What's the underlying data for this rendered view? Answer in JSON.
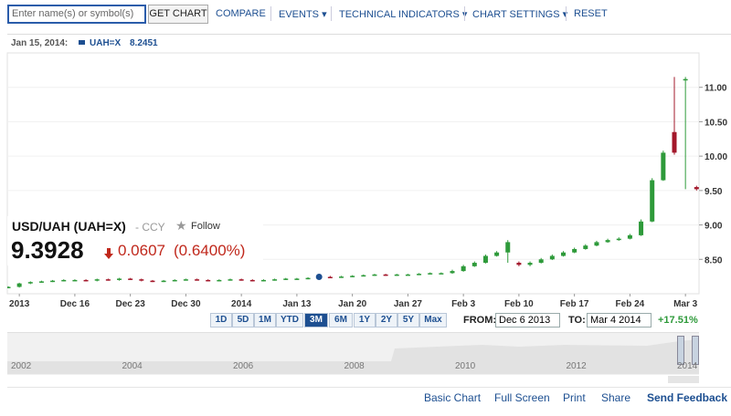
{
  "toolbar": {
    "search_placeholder": "Enter name(s) or symbol(s)",
    "button": "GET CHART",
    "links": [
      "COMPARE",
      "EVENTS ▾",
      "TECHNICAL INDICATORS ▾",
      "CHART SETTINGS ▾",
      "RESET"
    ]
  },
  "info": {
    "date": "Jan 15, 2014:",
    "symbol": "UAH=X"
  },
  "quote": {
    "name": "USD/UAH (UAH=X)",
    "type": "- CCY",
    "follow": "Follow",
    "price": "9.3928",
    "change": "0.0607",
    "change_percent": "(0.6400%)"
  },
  "chart_data": {
    "type": "candlestick",
    "categories": [
      null,
      "2013",
      null,
      null,
      null,
      null,
      "Dec 16",
      null,
      null,
      null,
      null,
      "Dec 23",
      null,
      null,
      null,
      null,
      "Dec 30",
      null,
      null,
      null,
      null,
      "2014",
      null,
      null,
      null,
      null,
      "Jan 13",
      null,
      null,
      null,
      null,
      "Jan 20",
      null,
      null,
      null,
      null,
      "Jan 27",
      null,
      null,
      null,
      null,
      "Feb 3",
      null,
      null,
      null,
      null,
      "Feb 10",
      null,
      null,
      null,
      null,
      "Feb 17",
      null,
      null,
      null,
      null,
      "Feb 24",
      null,
      null,
      null,
      null,
      "Mar 3",
      null
    ],
    "open": [
      8.09,
      8.1,
      8.15,
      8.17,
      8.18,
      8.19,
      8.2,
      8.2,
      8.19,
      8.21,
      8.2,
      8.22,
      8.21,
      8.19,
      8.18,
      8.19,
      8.2,
      8.21,
      8.2,
      8.19,
      8.2,
      8.21,
      8.2,
      8.19,
      8.2,
      8.21,
      8.22,
      8.22,
      8.23,
      8.2451,
      8.24,
      8.25,
      8.26,
      8.27,
      8.28,
      8.27,
      8.28,
      8.28,
      8.29,
      8.3,
      8.3,
      8.33,
      8.4,
      8.45,
      8.55,
      8.6,
      8.45,
      8.42,
      8.45,
      8.5,
      8.55,
      8.6,
      8.65,
      8.7,
      8.75,
      8.78,
      8.8,
      8.85,
      9.05,
      9.65,
      10.35,
      11.1,
      9.55
    ],
    "high": [
      8.11,
      8.16,
      8.18,
      8.19,
      8.2,
      8.21,
      8.21,
      8.21,
      8.22,
      8.22,
      8.23,
      8.23,
      8.22,
      8.2,
      8.2,
      8.21,
      8.22,
      8.22,
      8.21,
      8.21,
      8.22,
      8.22,
      8.21,
      8.21,
      8.22,
      8.23,
      8.23,
      8.24,
      8.26,
      8.26,
      8.26,
      8.27,
      8.28,
      8.29,
      8.29,
      8.29,
      8.29,
      8.3,
      8.31,
      8.31,
      8.35,
      8.42,
      8.47,
      8.57,
      8.62,
      8.78,
      8.47,
      8.47,
      8.52,
      8.57,
      8.62,
      8.67,
      8.72,
      8.77,
      8.8,
      8.82,
      8.87,
      9.08,
      9.68,
      10.08,
      11.15,
      11.15,
      9.57
    ],
    "low": [
      8.08,
      8.09,
      8.14,
      8.16,
      8.17,
      8.18,
      8.19,
      8.18,
      8.18,
      8.19,
      8.19,
      8.2,
      8.18,
      8.17,
      8.17,
      8.18,
      8.19,
      8.19,
      8.18,
      8.18,
      8.19,
      8.19,
      8.18,
      8.18,
      8.19,
      8.2,
      8.21,
      8.21,
      8.22,
      8.23,
      8.23,
      8.24,
      8.25,
      8.26,
      8.26,
      8.26,
      8.27,
      8.27,
      8.28,
      8.29,
      8.29,
      8.32,
      8.39,
      8.44,
      8.54,
      8.45,
      8.4,
      8.4,
      8.44,
      8.49,
      8.54,
      8.59,
      8.64,
      8.69,
      8.74,
      8.77,
      8.79,
      8.84,
      9.04,
      9.64,
      10.02,
      9.52,
      9.5
    ],
    "close": [
      8.1,
      8.15,
      8.17,
      8.18,
      8.19,
      8.2,
      8.2,
      8.19,
      8.21,
      8.2,
      8.22,
      8.21,
      8.19,
      8.18,
      8.19,
      8.2,
      8.21,
      8.2,
      8.19,
      8.2,
      8.21,
      8.2,
      8.19,
      8.2,
      8.21,
      8.22,
      8.22,
      8.23,
      8.2451,
      8.24,
      8.25,
      8.26,
      8.27,
      8.28,
      8.27,
      8.28,
      8.28,
      8.29,
      8.3,
      8.3,
      8.33,
      8.4,
      8.45,
      8.55,
      8.6,
      8.75,
      8.42,
      8.45,
      8.5,
      8.55,
      8.6,
      8.65,
      8.7,
      8.75,
      8.78,
      8.8,
      8.85,
      9.05,
      9.65,
      10.05,
      10.05,
      11.12,
      9.52
    ],
    "up_color": "#2e9a3a",
    "down_color": "#a3182b",
    "ylim": [
      8.0,
      11.5
    ],
    "yticks": [
      {
        "value": 8.5,
        "label": "8.50"
      },
      {
        "value": 9,
        "label": "9.00"
      },
      {
        "value": 9.5,
        "label": "9.50"
      },
      {
        "value": 10,
        "label": "10.00"
      },
      {
        "value": 10.5,
        "label": "10.50"
      },
      {
        "value": 11,
        "label": "11.00"
      }
    ],
    "grid": true,
    "highlight_index": 28
  },
  "controls": {
    "ranges": [
      "1D",
      "5D",
      "1M",
      "YTD",
      "3M",
      "6M",
      "1Y",
      "2Y",
      "5Y",
      "Max"
    ],
    "from_label": "FROM:",
    "from": "Dec 6 2013",
    "to_label": "TO:",
    "to": "Mar 4 2014",
    "change": "+17.51%"
  },
  "navigator": {
    "years": [
      "2002",
      "2004",
      "2006",
      "2008",
      "2010",
      "2012",
      "2014"
    ]
  },
  "footer": {
    "links": [
      "Basic Chart",
      "Full Screen",
      "Print",
      "Share",
      "Send Feedback"
    ]
  }
}
